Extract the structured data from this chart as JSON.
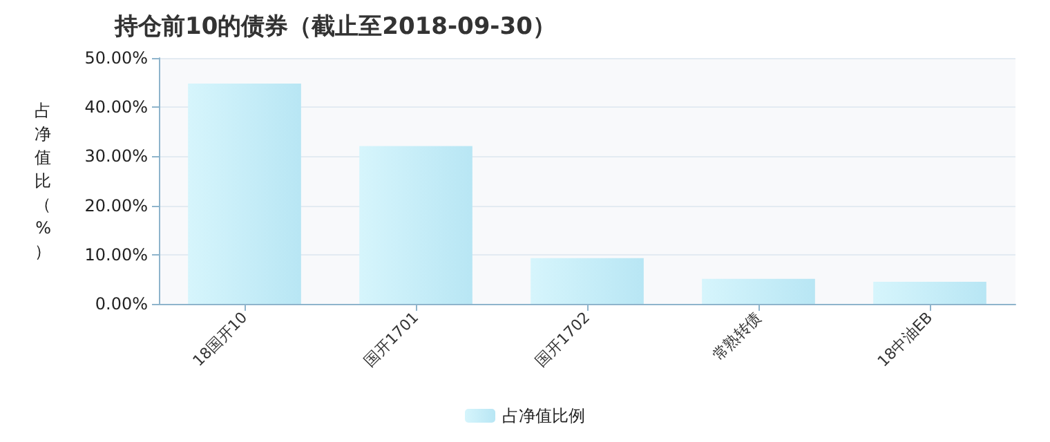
{
  "chart_data": {
    "type": "bar",
    "title": "持仓前10的债券（截止至2018-09-30）",
    "ylabel": "占净值比（%）",
    "categories": [
      "18国开10",
      "国开1701",
      "国开1702",
      "常熟转债",
      "18中油EB"
    ],
    "series": [
      {
        "name": "占净值比例",
        "color": "#b8e6f4",
        "values": [
          44.8,
          32.1,
          9.3,
          5.1,
          4.5
        ]
      }
    ],
    "ylim": [
      0,
      50
    ],
    "yticks": [
      {
        "value": 0,
        "label": "0.00%"
      },
      {
        "value": 10,
        "label": "10.00%"
      },
      {
        "value": 20,
        "label": "20.00%"
      },
      {
        "value": 30,
        "label": "30.00%"
      },
      {
        "value": 40,
        "label": "40.00%"
      },
      {
        "value": 50,
        "label": "50.00%"
      }
    ],
    "grid": "y",
    "legend": "bottom"
  }
}
